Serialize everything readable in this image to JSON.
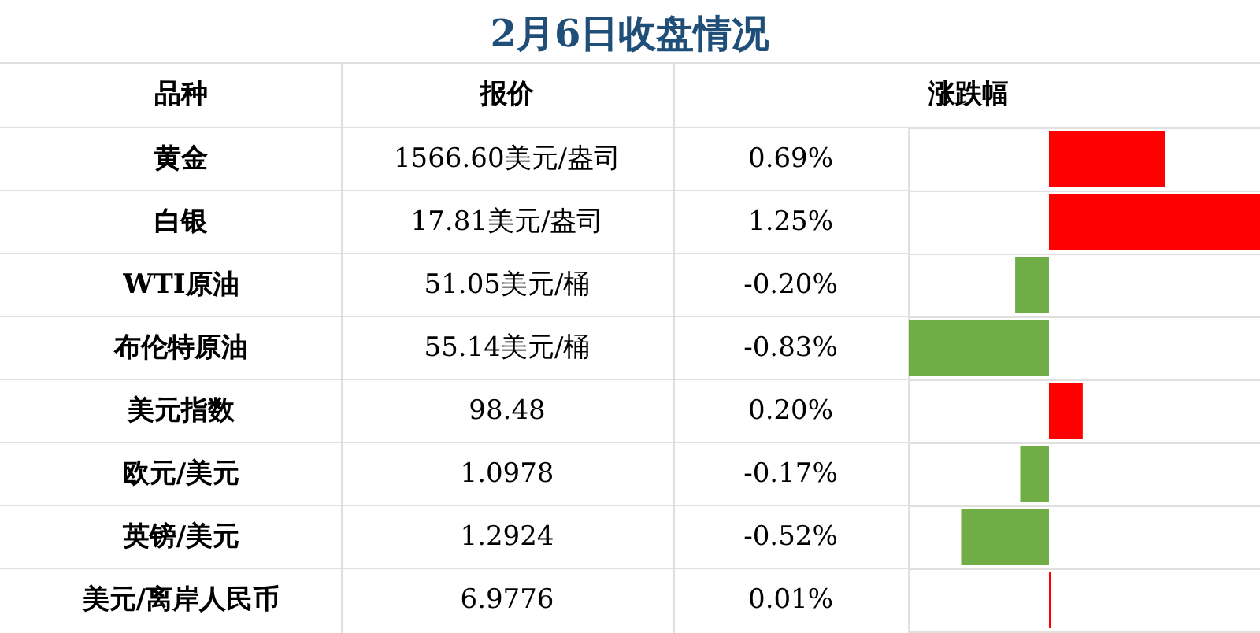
{
  "chart_data": {
    "type": "bar",
    "orientation": "horizontal",
    "title": "2月6日收盘情况",
    "ylabel": "品种",
    "xlabel": "涨跌幅",
    "categories": [
      "黄金",
      "白银",
      "WTI原油",
      "布伦特原油",
      "美元指数",
      "欧元/美元",
      "英镑/美元",
      "美元/离岸人民币"
    ],
    "values": [
      0.69,
      1.25,
      -0.2,
      -0.83,
      0.2,
      -0.17,
      -0.52,
      0.01
    ],
    "colors": [
      "#ff0000",
      "#ff0000",
      "#70ad47",
      "#70ad47",
      "#ff0000",
      "#70ad47",
      "#70ad47",
      "#ff0000"
    ],
    "value_labels": [
      "0.69%",
      "1.25%",
      "-0.20%",
      "-0.83%",
      "0.20%",
      "-0.17%",
      "-0.52%",
      "0.01%"
    ],
    "xlim": [
      -0.83,
      1.25
    ],
    "annotations": [
      "报价",
      "1566.60美元/盎司",
      "17.81美元/盎司",
      "51.05美元/桶",
      "55.14美元/桶",
      "98.48",
      "1.0978",
      "1.2924",
      "6.9776"
    ],
    "grid": "y"
  }
}
